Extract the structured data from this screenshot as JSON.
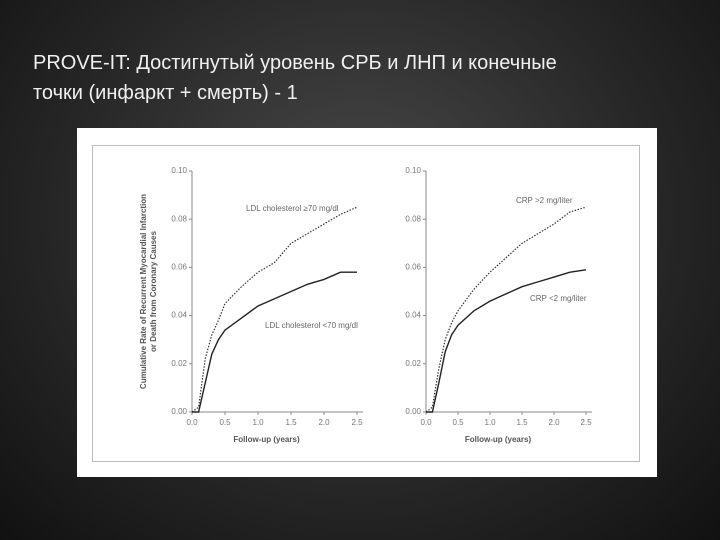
{
  "slide_title": [
    "PROVE-IT: Достигнутый уровень СРБ и ЛНП и конечные",
    "точки (инфаркт + смерть)  - 1"
  ],
  "chart_data": [
    {
      "type": "line",
      "ylabel": [
        "Cumulative Rate of Recurrent Myocardial Infarction",
        "or Death from Coronary Causes"
      ],
      "xlabel": "Follow-up (years)",
      "x": [
        0,
        0.1,
        0.2,
        0.3,
        0.4,
        0.5,
        0.75,
        1.0,
        1.25,
        1.5,
        1.75,
        2.0,
        2.25,
        2.5
      ],
      "xlim": [
        0,
        2.5
      ],
      "xticks": [
        {
          "value": 0,
          "label": "0.0"
        },
        0.5,
        {
          "value": 1,
          "label": "1.0"
        },
        1.5,
        {
          "value": 2,
          "label": "2.0"
        },
        2.5
      ],
      "ylim": [
        0,
        0.1
      ],
      "yticks": [
        {
          "value": 0,
          "label": "0.00"
        },
        0.02,
        0.04,
        0.06,
        0.08,
        {
          "value": 0.1,
          "label": "0.10"
        }
      ],
      "series": [
        {
          "name": "LDL cholesterol ≥70 mg/dl",
          "color": "#333333",
          "style": "dotted",
          "values": [
            0,
            0.002,
            0.022,
            0.032,
            0.038,
            0.045,
            0.052,
            0.058,
            0.062,
            0.07,
            0.074,
            0.078,
            0.082,
            0.085
          ]
        },
        {
          "name": "LDL cholesterol <70 mg/dl",
          "color": "#222222",
          "style": "solid",
          "values": [
            0,
            0,
            0.012,
            0.024,
            0.03,
            0.034,
            0.039,
            0.044,
            0.047,
            0.05,
            0.053,
            0.055,
            0.058,
            0.058
          ]
        }
      ]
    },
    {
      "type": "line",
      "xlabel": "Follow-up (years)",
      "x": [
        0,
        0.1,
        0.2,
        0.3,
        0.4,
        0.5,
        0.75,
        1.0,
        1.25,
        1.5,
        1.75,
        2.0,
        2.25,
        2.5
      ],
      "xlim": [
        0,
        2.5
      ],
      "xticks": [
        {
          "value": 0,
          "label": "0.0"
        },
        0.5,
        {
          "value": 1,
          "label": "1.0"
        },
        1.5,
        {
          "value": 2,
          "label": "2.0"
        },
        2.5
      ],
      "ylim": [
        0,
        0.1
      ],
      "yticks": [
        {
          "value": 0,
          "label": "0.00"
        },
        0.02,
        0.04,
        0.06,
        0.08,
        {
          "value": 0.1,
          "label": "0.10"
        }
      ],
      "series": [
        {
          "name": "CRP >2 mg/liter",
          "color": "#333333",
          "style": "dotted",
          "values": [
            0,
            0.002,
            0.018,
            0.03,
            0.037,
            0.042,
            0.051,
            0.058,
            0.064,
            0.07,
            0.074,
            0.078,
            0.083,
            0.085
          ]
        },
        {
          "name": "CRP <2 mg/liter",
          "color": "#222222",
          "style": "solid",
          "values": [
            0,
            0,
            0.012,
            0.025,
            0.032,
            0.036,
            0.042,
            0.046,
            0.049,
            0.052,
            0.054,
            0.056,
            0.058,
            0.059
          ]
        }
      ]
    }
  ]
}
